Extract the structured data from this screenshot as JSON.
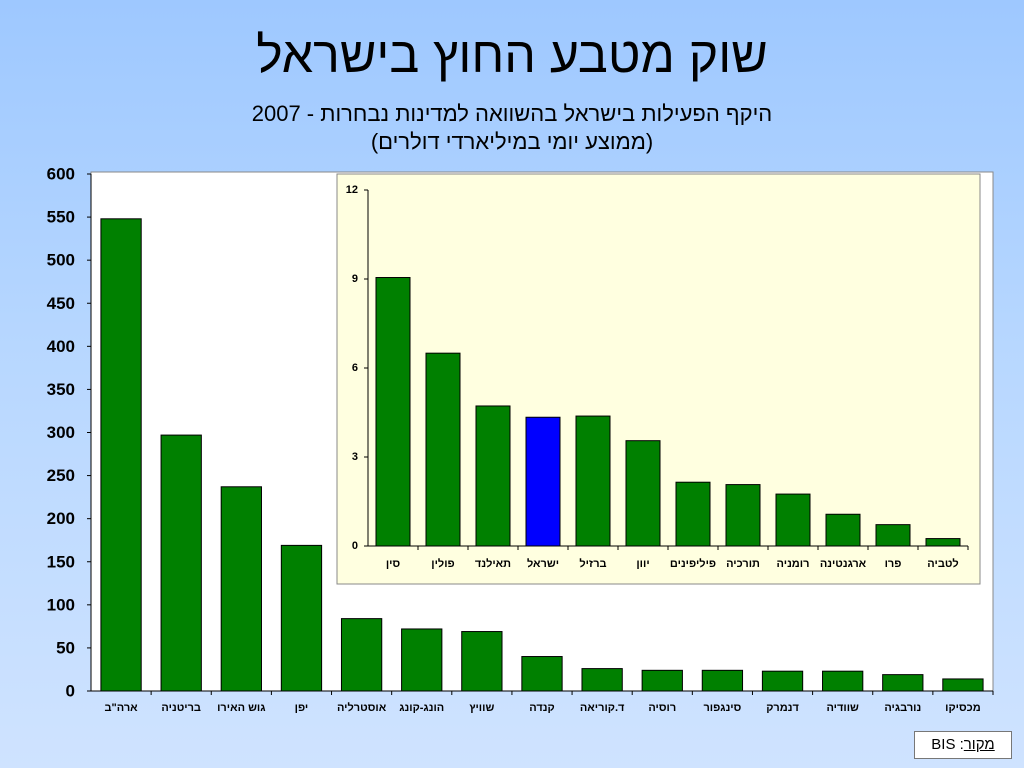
{
  "title": "שוק מטבע החוץ בישראל",
  "subtitle_line1": "היקף הפעילות בישראל בהשוואה למדינות נבחרות - 2007",
  "subtitle_line2": "(ממוצע יומי במיליארדי דולרים)",
  "source": {
    "label": "מקור",
    "value": "BIS"
  },
  "colors": {
    "bar": "#008000",
    "highlight": "#0000ff",
    "inset_bg": "#ffffe0",
    "main_bg": "#ffffff"
  },
  "chart_data": [
    {
      "type": "bar",
      "categories": [
        "ארה\"ב",
        "בריטניה",
        "גוש האירו",
        "יפן",
        "אוסטרליה",
        "הונג-קונג",
        "שוויץ",
        "קנדה",
        "ד.קוריאה",
        "רוסיה",
        "סינגפור",
        "דנמרק",
        "שוודיה",
        "נורבגיה",
        "מכסיקו"
      ],
      "values": [
        548,
        297,
        237,
        169,
        84,
        72,
        69,
        40,
        26,
        24,
        24,
        23,
        23,
        19,
        14
      ],
      "ylim": [
        0,
        600
      ],
      "yticks": [
        0,
        50,
        100,
        150,
        200,
        250,
        300,
        350,
        400,
        450,
        500,
        550,
        600
      ],
      "grid": false
    },
    {
      "type": "bar",
      "categories": [
        "סין",
        "פולין",
        "תאילנד",
        "ישראל",
        "ברזיל",
        "יוון",
        "פיליפינים",
        "תורכיה",
        "רומניה",
        "ארגנטינה",
        "פרו",
        "לטביה"
      ],
      "values": [
        9.05,
        6.5,
        4.72,
        4.34,
        4.38,
        3.55,
        2.15,
        2.07,
        1.75,
        1.07,
        0.72,
        0.25
      ],
      "highlight": "ישראל",
      "ylim": [
        0,
        12
      ],
      "yticks": [
        0,
        3,
        6,
        9,
        12
      ],
      "grid": false
    }
  ]
}
